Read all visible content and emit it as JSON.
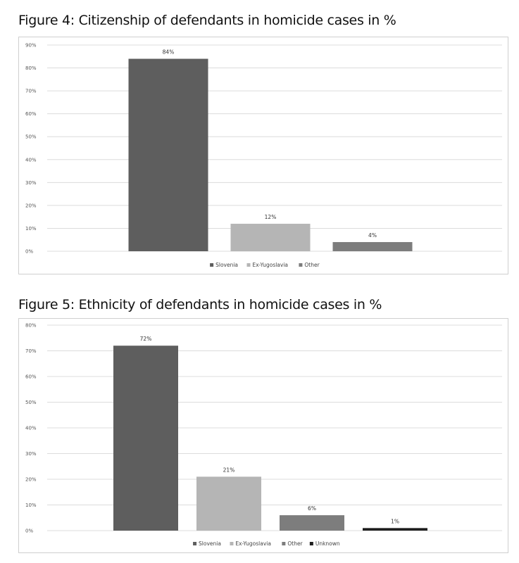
{
  "figures": [
    {
      "title": "Figure 4: Citizenship of defendants in homicide cases in %",
      "chart_data": {
        "type": "bar",
        "categories": [
          "Slovenia",
          "Ex-Yugoslavia",
          "Other"
        ],
        "values": [
          84,
          12,
          4
        ],
        "value_labels": [
          "84%",
          "12%",
          "4%"
        ],
        "colors": [
          "#5e5e5e",
          "#b5b5b5",
          "#7d7d7d"
        ],
        "ylim": [
          0,
          90
        ],
        "yticks": [
          0,
          10,
          20,
          30,
          40,
          50,
          60,
          70,
          80,
          90
        ],
        "ytick_labels": [
          "0%",
          "10%",
          "20%",
          "30%",
          "40%",
          "50%",
          "60%",
          "70%",
          "80%",
          "90%"
        ],
        "grid": true,
        "legend_position": "bottom",
        "legend": [
          "Slovenia",
          "Ex-Yugoslavia",
          "Other"
        ]
      }
    },
    {
      "title": "Figure 5: Ethnicity of defendants in homicide cases in %",
      "chart_data": {
        "type": "bar",
        "categories": [
          "Slovenia",
          "Ex-Yugoslavia",
          "Other",
          "Unknown"
        ],
        "values": [
          72,
          21,
          6,
          1
        ],
        "value_labels": [
          "72%",
          "21%",
          "6%",
          "1%"
        ],
        "colors": [
          "#5e5e5e",
          "#b5b5b5",
          "#7d7d7d",
          "#1e1e1e"
        ],
        "ylim": [
          0,
          80
        ],
        "yticks": [
          0,
          10,
          20,
          30,
          40,
          50,
          60,
          70,
          80
        ],
        "ytick_labels": [
          "0%",
          "10%",
          "20%",
          "30%",
          "40%",
          "50%",
          "60%",
          "70%",
          "80%"
        ],
        "grid": true,
        "legend_position": "bottom",
        "legend": [
          "Slovenia",
          "Ex-Yugoslavia",
          "Other",
          "Unknown"
        ]
      }
    }
  ]
}
